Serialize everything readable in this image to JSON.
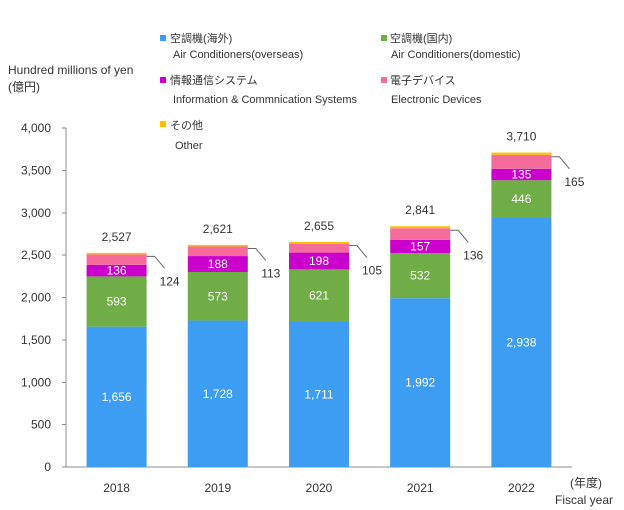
{
  "chart_data": {
    "type": "bar",
    "stacked": true,
    "categories": [
      "2018",
      "2019",
      "2020",
      "2021",
      "2022"
    ],
    "series": [
      {
        "name": "空調機(海外)",
        "name_en": "Air Conditioners(overseas)",
        "color": "#3d9df3",
        "values": [
          1656,
          1728,
          1711,
          1992,
          2938
        ],
        "data_labels": "inside"
      },
      {
        "name": "空調機(国内)",
        "name_en": "Air Conditioners(domestic)",
        "color": "#70ad47",
        "values": [
          593,
          573,
          621,
          532,
          446
        ],
        "data_labels": "inside"
      },
      {
        "name": "情報通信システム",
        "name_en": "Information & Commnication Systems",
        "color": "#cc00cc",
        "values": [
          136,
          188,
          198,
          157,
          135
        ],
        "data_labels": "inside"
      },
      {
        "name": "電子デバイス",
        "name_en": "Electronic Devices",
        "color": "#f56b9c",
        "values": [
          124,
          113,
          105,
          136,
          165
        ],
        "data_labels": "callout"
      },
      {
        "name": "その他",
        "name_en": "Other",
        "color": "#ffc000",
        "values": [
          18,
          19,
          20,
          24,
          26
        ],
        "data_labels": "none"
      }
    ],
    "totals": [
      2527,
      2621,
      2655,
      2841,
      3710
    ],
    "ylabel": "Hundred millions of yen",
    "ylabel_unit": "(億円)",
    "xlabel_unit": "(年度)",
    "xlabel": "Fiscal year",
    "ylim": [
      0,
      4000
    ],
    "yticks": [
      0,
      500,
      1000,
      1500,
      2000,
      2500,
      3000,
      3500,
      4000
    ],
    "grid": false,
    "legend": "top"
  }
}
